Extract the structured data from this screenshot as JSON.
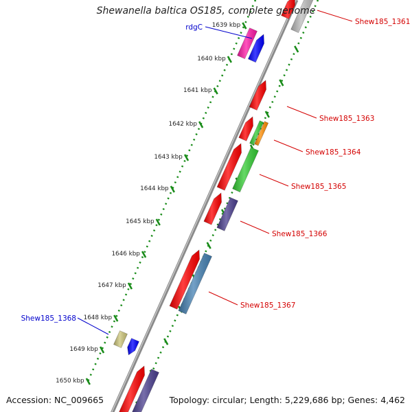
{
  "title": "Shewanella baltica OS185, complete genome",
  "footer": {
    "accession": "Accession: NC_009665",
    "topology": "Topology: circular; Length: 5,229,686 bp; Genes: 4,462"
  },
  "ticks": [
    "1639 kbp",
    "1640 kbp",
    "1641 kbp",
    "1642 kbp",
    "1643 kbp",
    "1644 kbp",
    "1645 kbp",
    "1646 kbp",
    "1647 kbp",
    "1648 kbp",
    "1649 kbp",
    "1650 kbp"
  ],
  "gene_labels": [
    {
      "text": "Shew185_1361",
      "color": "#d40000"
    },
    {
      "text": "rdgC",
      "color": "#0000cc"
    },
    {
      "text": "Shew185_1363",
      "color": "#d40000"
    },
    {
      "text": "Shew185_1364",
      "color": "#d40000"
    },
    {
      "text": "Shew185_1365",
      "color": "#d40000"
    },
    {
      "text": "Shew185_1366",
      "color": "#d40000"
    },
    {
      "text": "Shew185_1367",
      "color": "#d40000"
    },
    {
      "text": "Shew185_1368",
      "color": "#0000cc"
    }
  ],
  "colors": {
    "backbone": "#8a8a8a",
    "dots": "#1a8c1a",
    "red": "#ff0000",
    "blue": "#0000ff",
    "magenta": "#ff1aa8",
    "green": "#33cc33",
    "orange": "#ff8c00",
    "purple": "#4b3f8f",
    "steelblue": "#4682b4",
    "khaki": "#cdc67a",
    "gray": "#bdbdbd"
  }
}
